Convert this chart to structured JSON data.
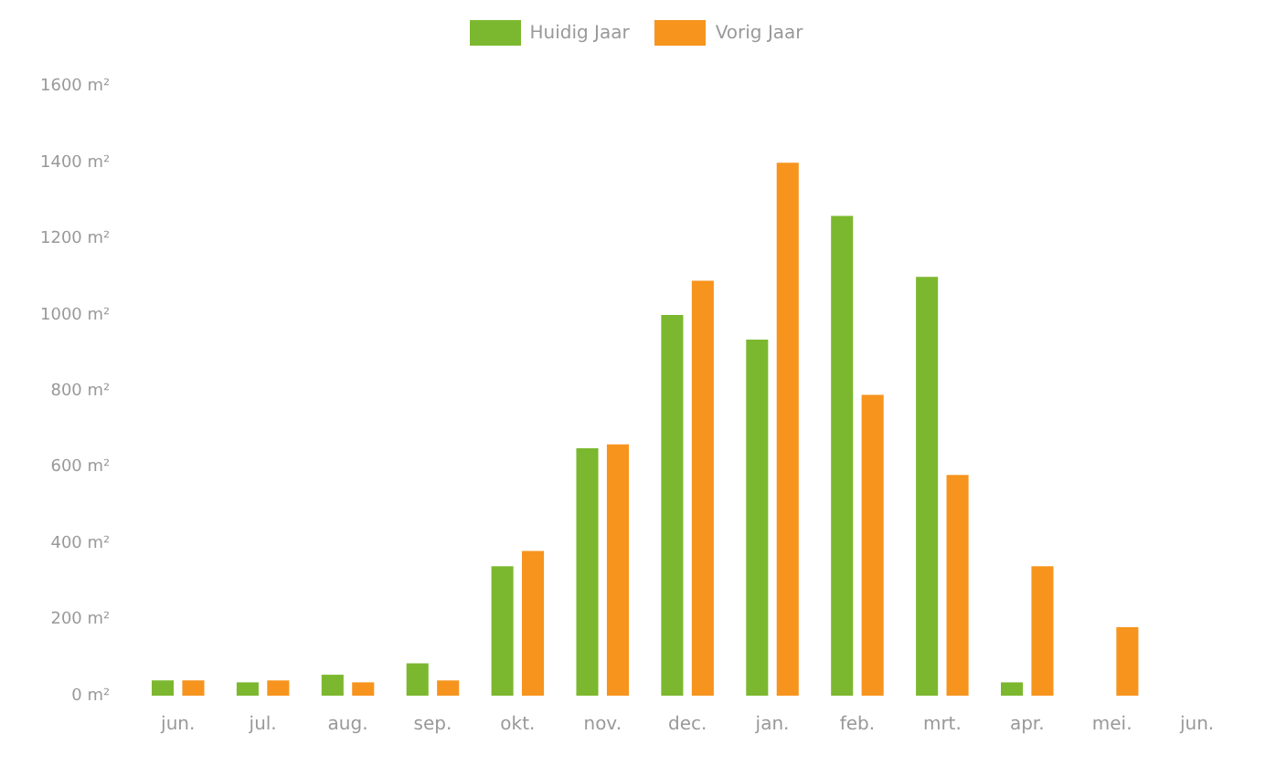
{
  "chart_data": {
    "type": "bar",
    "categories": [
      "jun.",
      "jul.",
      "aug.",
      "sep.",
      "okt.",
      "nov.",
      "dec.",
      "jan.",
      "feb.",
      "mrt.",
      "apr.",
      "mei.",
      "jun."
    ],
    "series": [
      {
        "name": "Huidig Jaar",
        "color": "#7cb82f",
        "values": [
          40,
          35,
          55,
          85,
          340,
          650,
          1000,
          935,
          1260,
          1100,
          35,
          null,
          null
        ]
      },
      {
        "name": "Vorig Jaar",
        "color": "#f7941d",
        "values": [
          40,
          40,
          35,
          40,
          380,
          660,
          1090,
          1400,
          790,
          580,
          340,
          180,
          null
        ]
      }
    ],
    "ylim": [
      0,
      1600
    ],
    "yticks": [
      {
        "value": 0,
        "label": "0 m²"
      },
      {
        "value": 200,
        "label": "200 m²"
      },
      {
        "value": 400,
        "label": "400 m²"
      },
      {
        "value": 600,
        "label": "600 m²"
      },
      {
        "value": 800,
        "label": "800 m²"
      },
      {
        "value": 1000,
        "label": "1000 m²"
      },
      {
        "value": 1200,
        "label": "1200 m²"
      },
      {
        "value": 1400,
        "label": "1400 m²"
      },
      {
        "value": 1600,
        "label": "1600 m²"
      }
    ],
    "grid": false,
    "legend": "top"
  }
}
